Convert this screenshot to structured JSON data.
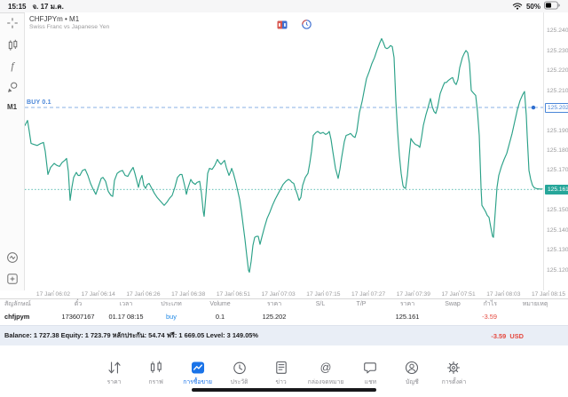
{
  "status_bar": {
    "time": "15:15",
    "date": "จ. 17 ม.ค.",
    "battery_percent": "50%"
  },
  "chart": {
    "title": "CHFJPYm • M1",
    "subtitle": "Swiss Franc vs Japanese Yen",
    "buy_position_label": "BUY 0.1",
    "timeframe_badge": "M1",
    "function_glyph": "f",
    "position_price": "125.202",
    "current_price": "125.161"
  },
  "chart_data": {
    "type": "line",
    "title": "CHFJPYm M1",
    "xlabel": "time",
    "ylabel": "price",
    "grid": false,
    "legend_position": "none",
    "ylim": [
      125.1104,
      125.2496
    ],
    "y_ticks": [
      "125.240",
      "125.230",
      "125.220",
      "125.210",
      "125.200",
      "125.190",
      "125.180",
      "125.170",
      "125.160",
      "125.150",
      "125.140",
      "125.130",
      "125.120"
    ],
    "x_ticks": [
      "17 Jan 06:02",
      "17 Jan 06:14",
      "17 Jan 06:26",
      "17 Jan 06:38",
      "17 Jan 06:51",
      "17 Jan 07:03",
      "17 Jan 07:15",
      "17 Jan 07:27",
      "17 Jan 07:39",
      "17 Jan 07:51",
      "17 Jan 08:03",
      "17 Jan 08:15"
    ],
    "buy_line_price": 125.202,
    "current_price": 125.161,
    "buy_marker_x": 601,
    "series": [
      {
        "name": "CHFJPYm bid",
        "points": [
          [
            28,
            125.193
          ],
          [
            31,
            125.1955
          ],
          [
            33,
            125.19
          ],
          [
            35,
            125.184
          ],
          [
            38,
            125.1835
          ],
          [
            42,
            125.183
          ],
          [
            46,
            125.184
          ],
          [
            49,
            125.1845
          ],
          [
            51,
            125.18
          ],
          [
            54,
            125.1685
          ],
          [
            57,
            125.172
          ],
          [
            61,
            125.174
          ],
          [
            64,
            125.173
          ],
          [
            67,
            125.1725
          ],
          [
            70,
            125.1745
          ],
          [
            73,
            125.1755
          ],
          [
            75,
            125.1765
          ],
          [
            77,
            125.17
          ],
          [
            79,
            125.1555
          ],
          [
            81,
            125.162
          ],
          [
            83,
            125.167
          ],
          [
            86,
            125.1695
          ],
          [
            88,
            125.168
          ],
          [
            90,
            125.168
          ],
          [
            93,
            125.1705
          ],
          [
            96,
            125.171
          ],
          [
            99,
            125.168
          ],
          [
            102,
            125.164
          ],
          [
            105,
            125.161
          ],
          [
            108,
            125.1585
          ],
          [
            111,
            125.1625
          ],
          [
            114,
            125.1665
          ],
          [
            116,
            125.167
          ],
          [
            119,
            125.165
          ],
          [
            122,
            125.16
          ],
          [
            125,
            125.158
          ],
          [
            127,
            125.1575
          ],
          [
            129,
            125.1655
          ],
          [
            132,
            125.169
          ],
          [
            135,
            125.17
          ],
          [
            138,
            125.1705
          ],
          [
            141,
            125.168
          ],
          [
            144,
            125.1675
          ],
          [
            147,
            125.17
          ],
          [
            150,
            125.172
          ],
          [
            152,
            125.169
          ],
          [
            154,
            125.1655
          ],
          [
            156,
            125.162
          ],
          [
            158,
            125.166
          ],
          [
            160,
            125.168
          ],
          [
            162,
            125.163
          ],
          [
            164,
            125.1615
          ],
          [
            166,
            125.1635
          ],
          [
            168,
            125.164
          ],
          [
            171,
            125.1615
          ],
          [
            174,
            125.159
          ],
          [
            177,
            125.157
          ],
          [
            180,
            125.1555
          ],
          [
            183,
            125.154
          ],
          [
            185,
            125.153
          ],
          [
            188,
            125.1545
          ],
          [
            191,
            125.1565
          ],
          [
            194,
            125.158
          ],
          [
            197,
            125.162
          ],
          [
            200,
            125.167
          ],
          [
            203,
            125.1685
          ],
          [
            205,
            125.1685
          ],
          [
            208,
            125.163
          ],
          [
            210,
            125.1585
          ],
          [
            212,
            125.162
          ],
          [
            215,
            125.166
          ],
          [
            217,
            125.1645
          ],
          [
            220,
            125.1635
          ],
          [
            222,
            125.1645
          ],
          [
            225,
            125.165
          ],
          [
            227,
            125.159
          ],
          [
            229,
            125.15
          ],
          [
            230,
            125.1475
          ],
          [
            232,
            125.158
          ],
          [
            234,
            125.169
          ],
          [
            236,
            125.1715
          ],
          [
            239,
            125.171
          ],
          [
            242,
            125.173
          ],
          [
            245,
            125.176
          ],
          [
            247,
            125.1745
          ],
          [
            249,
            125.1735
          ],
          [
            251,
            125.1745
          ],
          [
            253,
            125.1755
          ],
          [
            255,
            125.172
          ],
          [
            258,
            125.168
          ],
          [
            260,
            125.17
          ],
          [
            261,
            125.1715
          ],
          [
            263,
            125.169
          ],
          [
            266,
            125.164
          ],
          [
            268,
            125.16
          ],
          [
            270,
            125.156
          ],
          [
            272,
            125.15
          ],
          [
            274,
            125.143
          ],
          [
            276,
            125.136
          ],
          [
            278,
            125.128
          ],
          [
            280,
            125.1205
          ],
          [
            281,
            125.1195
          ],
          [
            283,
            125.125
          ],
          [
            285,
            125.133
          ],
          [
            287,
            125.137
          ],
          [
            289,
            125.1375
          ],
          [
            291,
            125.1375
          ],
          [
            293,
            125.1335
          ],
          [
            295,
            125.137
          ],
          [
            298,
            125.142
          ],
          [
            301,
            125.1465
          ],
          [
            304,
            125.1495
          ],
          [
            307,
            125.153
          ],
          [
            310,
            125.156
          ],
          [
            313,
            125.1585
          ],
          [
            316,
            125.161
          ],
          [
            319,
            125.1635
          ],
          [
            322,
            125.165
          ],
          [
            325,
            125.166
          ],
          [
            327,
            125.1655
          ],
          [
            329,
            125.1645
          ],
          [
            331,
            125.164
          ],
          [
            333,
            125.161
          ],
          [
            335,
            125.1585
          ],
          [
            337,
            125.1555
          ],
          [
            339,
            125.157
          ],
          [
            341,
            125.163
          ],
          [
            344,
            125.167
          ],
          [
            347,
            125.169
          ],
          [
            349,
            125.174
          ],
          [
            351,
            125.18
          ],
          [
            353,
            125.188
          ],
          [
            356,
            125.1895
          ],
          [
            358,
            125.19
          ],
          [
            361,
            125.189
          ],
          [
            364,
            125.1895
          ],
          [
            367,
            125.1885
          ],
          [
            369,
            125.189
          ],
          [
            371,
            125.19
          ],
          [
            373,
            125.186
          ],
          [
            375,
            125.18
          ],
          [
            378,
            125.1715
          ],
          [
            381,
            125.1665
          ],
          [
            383,
            125.171
          ],
          [
            385,
            125.177
          ],
          [
            388,
            125.185
          ],
          [
            390,
            125.188
          ],
          [
            393,
            125.1885
          ],
          [
            395,
            125.189
          ],
          [
            398,
            125.1875
          ],
          [
            400,
            125.187
          ],
          [
            402,
            125.19
          ],
          [
            405,
            125.1995
          ],
          [
            408,
            125.205
          ],
          [
            411,
            125.212
          ],
          [
            413,
            125.2165
          ],
          [
            416,
            125.22
          ],
          [
            419,
            125.224
          ],
          [
            422,
            125.227
          ],
          [
            425,
            125.231
          ],
          [
            428,
            125.2345
          ],
          [
            430,
            125.2365
          ],
          [
            432,
            125.2345
          ],
          [
            434,
            125.232
          ],
          [
            436,
            125.2315
          ],
          [
            438,
            125.232
          ],
          [
            440,
            125.233
          ],
          [
            442,
            125.2325
          ],
          [
            444,
            125.227
          ],
          [
            446,
            125.2055
          ],
          [
            448,
            125.19
          ],
          [
            450,
            125.178
          ],
          [
            452,
            125.169
          ],
          [
            454,
            125.163
          ],
          [
            455,
            125.162
          ],
          [
            457,
            125.1615
          ],
          [
            459,
            125.168
          ],
          [
            461,
            125.178
          ],
          [
            463,
            125.1865
          ],
          [
            465,
            125.185
          ],
          [
            468,
            125.1835
          ],
          [
            471,
            125.183
          ],
          [
            473,
            125.182
          ],
          [
            475,
            125.187
          ],
          [
            477,
            125.193
          ],
          [
            480,
            125.1985
          ],
          [
            482,
            125.2015
          ],
          [
            485,
            125.2065
          ],
          [
            487,
            125.2025
          ],
          [
            489,
            125.2
          ],
          [
            491,
            125.199
          ],
          [
            493,
            125.202
          ],
          [
            496,
            125.209
          ],
          [
            499,
            125.2125
          ],
          [
            501,
            125.2145
          ],
          [
            503,
            125.2145
          ],
          [
            505,
            125.2155
          ],
          [
            508,
            125.2165
          ],
          [
            510,
            125.217
          ],
          [
            512,
            125.2145
          ],
          [
            514,
            125.2135
          ],
          [
            516,
            125.216
          ],
          [
            518,
            125.222
          ],
          [
            521,
            125.227
          ],
          [
            523,
            125.229
          ],
          [
            525,
            125.2305
          ],
          [
            527,
            125.2295
          ],
          [
            529,
            125.224
          ],
          [
            531,
            125.2105
          ],
          [
            533,
            125.2095
          ],
          [
            536,
            125.208
          ],
          [
            538,
            125.2
          ],
          [
            540,
            125.188
          ],
          [
            542,
            125.162
          ],
          [
            543,
            125.153
          ],
          [
            545,
            125.1515
          ],
          [
            547,
            125.15
          ],
          [
            549,
            125.148
          ],
          [
            551,
            125.147
          ],
          [
            553,
            125.142
          ],
          [
            555,
            125.1375
          ],
          [
            556,
            125.137
          ],
          [
            558,
            125.1495
          ],
          [
            560,
            125.162
          ],
          [
            562,
            125.168
          ],
          [
            565,
            125.1725
          ],
          [
            568,
            125.176
          ],
          [
            571,
            125.179
          ],
          [
            574,
            125.184
          ],
          [
            577,
            125.189
          ],
          [
            580,
            125.195
          ],
          [
            583,
            125.201
          ],
          [
            586,
            125.2055
          ],
          [
            589,
            125.2085
          ],
          [
            591,
            125.21
          ],
          [
            593,
            125.198
          ],
          [
            594,
            125.188
          ],
          [
            596,
            125.1705
          ],
          [
            598,
            125.166
          ],
          [
            600,
            125.163
          ],
          [
            602,
            125.1618
          ],
          [
            605,
            125.1613
          ],
          [
            608,
            125.1612
          ],
          [
            611,
            125.1612
          ]
        ]
      }
    ]
  },
  "trade_table": {
    "columns": [
      "สัญลักษณ์",
      "ตั๋ว",
      "เวลา",
      "ประเภท",
      "Volume",
      "ราคา",
      "S/L",
      "T/P",
      "ราคา",
      "Swap",
      "กำไร",
      "หมายเหตุ"
    ],
    "row": [
      "chfjpym",
      "173607167",
      "01.17 08:15",
      "buy",
      "0.1",
      "125.202",
      "",
      "",
      "125.161",
      "",
      "-3.59",
      ""
    ]
  },
  "balance": {
    "summary": "Balance: 1 727.38 Equity: 1 723.79 หลักประกัน: 54.74 ฟรี: 1 669.05 Level: 3 149.05%",
    "profit": "-3.59",
    "currency": "USD"
  },
  "tab_bar": {
    "items": [
      {
        "label": "ราคา",
        "icon": "quotes",
        "active": false
      },
      {
        "label": "กราฟ",
        "icon": "chart",
        "active": false
      },
      {
        "label": "การซื้อขาย",
        "icon": "trade",
        "active": true
      },
      {
        "label": "ประวัติ",
        "icon": "history",
        "active": false
      },
      {
        "label": "ข่าว",
        "icon": "news",
        "active": false
      },
      {
        "label": "กล่องจดหมาย",
        "icon": "mailbox",
        "active": false
      },
      {
        "label": "แชท",
        "icon": "chat",
        "active": false
      },
      {
        "label": "บัญชี",
        "icon": "account",
        "active": false
      },
      {
        "label": "การตั้งค่า",
        "icon": "settings",
        "active": false
      }
    ]
  },
  "colors": {
    "line": "#2ba188",
    "teal": "#26a69a",
    "buy_blue": "#4a86d8",
    "buy_text": "#1e88e5",
    "loss_red": "#e5483e",
    "tab_active": "#1a73e8"
  }
}
